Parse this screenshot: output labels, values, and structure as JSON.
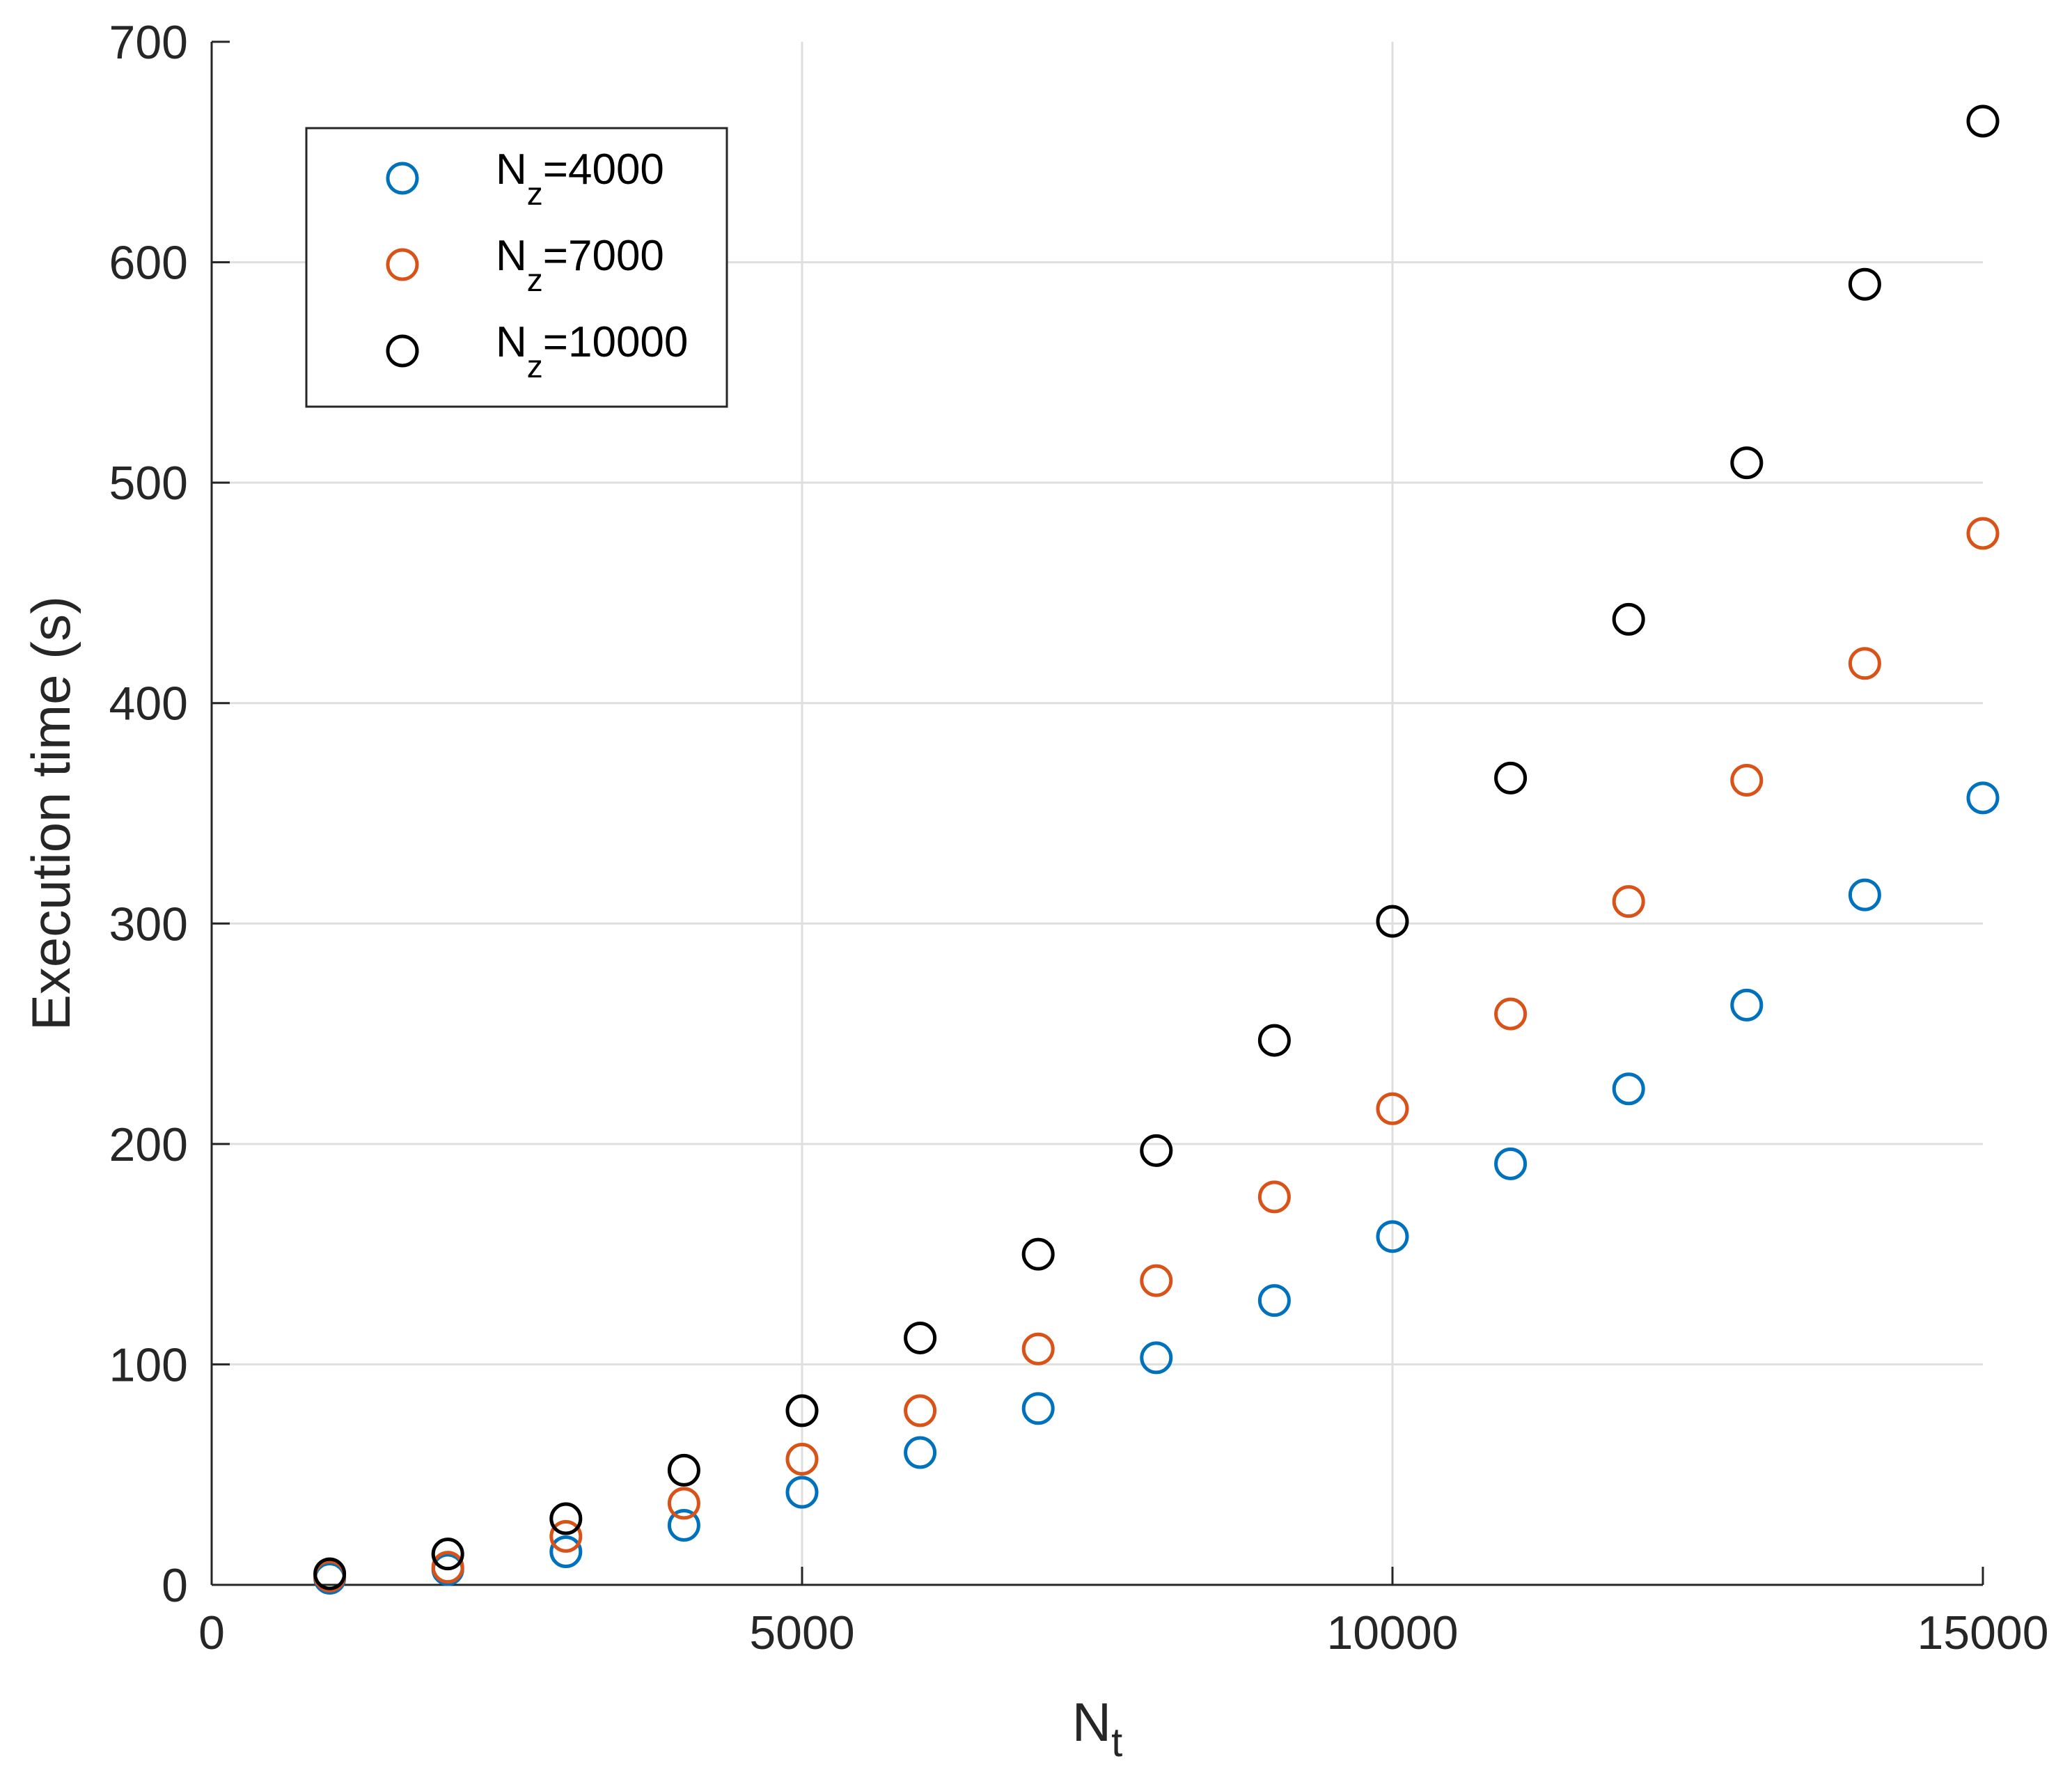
{
  "chart_data": {
    "type": "scatter",
    "title": "",
    "xlabel": "N",
    "xlabel_sub": "t",
    "ylabel": "Execution time (s)",
    "xlim": [
      0,
      15000
    ],
    "ylim": [
      0,
      700
    ],
    "xticks": [
      0,
      5000,
      10000,
      15000
    ],
    "xtick_labels": [
      "0",
      "5000",
      "10000",
      "15000"
    ],
    "yticks": [
      0,
      100,
      200,
      300,
      400,
      500,
      600,
      700
    ],
    "ytick_labels": [
      "0",
      "100",
      "200",
      "300",
      "400",
      "500",
      "600",
      "700"
    ],
    "grid": true,
    "legend_position": "top-left",
    "x": [
      1000,
      2000,
      3000,
      4000,
      5000,
      6000,
      7000,
      8000,
      9000,
      10000,
      11000,
      12000,
      13000,
      14000,
      15000
    ],
    "series": [
      {
        "name": "N_z=4000",
        "label_main": "N",
        "label_sub": "z",
        "label_rest": "=4000",
        "color": "#0072BD",
        "values": [
          3,
          7,
          15,
          27,
          42,
          60,
          80,
          103,
          129,
          158,
          191,
          225,
          263,
          313,
          357
        ]
      },
      {
        "name": "N_z=7000",
        "label_main": "N",
        "label_sub": "z",
        "label_rest": "=7000",
        "color": "#D95319",
        "values": [
          4,
          8,
          22,
          37,
          57,
          79,
          107,
          138,
          176,
          216,
          259,
          310,
          365,
          418,
          477
        ]
      },
      {
        "name": "N_z=10000",
        "label_main": "N",
        "label_sub": "z",
        "label_rest": "=10000",
        "color": "#000000",
        "values": [
          5,
          14,
          30,
          52,
          79,
          112,
          150,
          197,
          247,
          301,
          366,
          438,
          509,
          590,
          664
        ]
      }
    ]
  }
}
